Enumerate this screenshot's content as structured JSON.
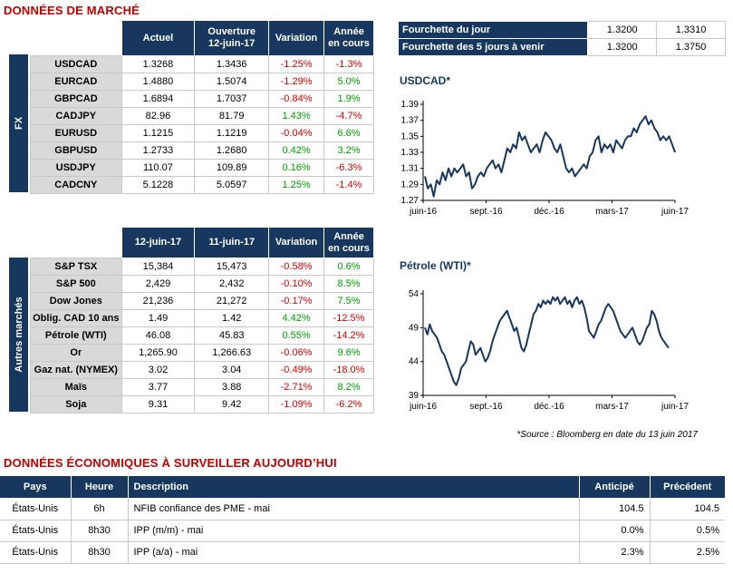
{
  "market": {
    "title": "DONNÉES DE MARCHÉ",
    "fx": {
      "side_label": "FX",
      "headers": [
        "Actuel",
        "Ouverture 12-juin-17",
        "Variation",
        "Année en cours"
      ],
      "rows": [
        {
          "name": "USDCAD",
          "cur": "1.3268",
          "open": "1.3436",
          "var": "-1.25%",
          "ytd": "-1.3%",
          "var_dir": "neg",
          "ytd_dir": "neg"
        },
        {
          "name": "EURCAD",
          "cur": "1.4880",
          "open": "1.5074",
          "var": "-1.29%",
          "ytd": "5.0%",
          "var_dir": "neg",
          "ytd_dir": "pos"
        },
        {
          "name": "GBPCAD",
          "cur": "1.6894",
          "open": "1.7037",
          "var": "-0.84%",
          "ytd": "1.9%",
          "var_dir": "neg",
          "ytd_dir": "pos"
        },
        {
          "name": "CADJPY",
          "cur": "82.96",
          "open": "81.79",
          "var": "1.43%",
          "ytd": "-4.7%",
          "var_dir": "pos",
          "ytd_dir": "neg"
        },
        {
          "name": "EURUSD",
          "cur": "1.1215",
          "open": "1.1219",
          "var": "-0.04%",
          "ytd": "6.6%",
          "var_dir": "neg",
          "ytd_dir": "pos"
        },
        {
          "name": "GBPUSD",
          "cur": "1.2733",
          "open": "1.2680",
          "var": "0.42%",
          "ytd": "3.2%",
          "var_dir": "pos",
          "ytd_dir": "pos"
        },
        {
          "name": "USDJPY",
          "cur": "110.07",
          "open": "109.89",
          "var": "0.16%",
          "ytd": "-6.3%",
          "var_dir": "pos",
          "ytd_dir": "neg"
        },
        {
          "name": "CADCNY",
          "cur": "5.1228",
          "open": "5.0597",
          "var": "1.25%",
          "ytd": "-1.4%",
          "var_dir": "pos",
          "ytd_dir": "neg"
        }
      ]
    },
    "range": {
      "rows": [
        {
          "label": "Fourchette du jour",
          "low": "1.3200",
          "high": "1.3310"
        },
        {
          "label": "Fourchette des 5 jours à venir",
          "low": "1.3200",
          "high": "1.3750"
        }
      ]
    },
    "other": {
      "side_label": "Autres marchés",
      "headers": [
        "12-juin-17",
        "11-juin-17",
        "Variation",
        "Année en cours"
      ],
      "rows": [
        {
          "name": "S&P TSX",
          "cur": "15,384",
          "prev": "15,473",
          "var": "-0.58%",
          "ytd": "0.6%",
          "var_dir": "neg",
          "ytd_dir": "pos"
        },
        {
          "name": "S&P 500",
          "cur": "2,429",
          "prev": "2,432",
          "var": "-0.10%",
          "ytd": "8.5%",
          "var_dir": "neg",
          "ytd_dir": "pos"
        },
        {
          "name": "Dow Jones",
          "cur": "21,236",
          "prev": "21,272",
          "var": "-0.17%",
          "ytd": "7.5%",
          "var_dir": "neg",
          "ytd_dir": "pos"
        },
        {
          "name": "Oblig. CAD 10 ans",
          "cur": "1.49",
          "prev": "1.42",
          "var": "4.42%",
          "ytd": "-12.5%",
          "var_dir": "pos",
          "ytd_dir": "neg"
        },
        {
          "name": "Pétrole (WTI)",
          "cur": "46.08",
          "prev": "45.83",
          "var": "0.55%",
          "ytd": "-14.2%",
          "var_dir": "pos",
          "ytd_dir": "neg"
        },
        {
          "name": "Or",
          "cur": "1,265.90",
          "prev": "1,266.63",
          "var": "-0.06%",
          "ytd": "9.6%",
          "var_dir": "neg",
          "ytd_dir": "pos"
        },
        {
          "name": "Gaz nat. (NYMEX)",
          "cur": "3.02",
          "prev": "3.04",
          "var": "-0.49%",
          "ytd": "-18.0%",
          "var_dir": "neg",
          "ytd_dir": "neg"
        },
        {
          "name": "Maïs",
          "cur": "3.77",
          "prev": "3.88",
          "var": "-2.71%",
          "ytd": "8.2%",
          "var_dir": "neg",
          "ytd_dir": "pos"
        },
        {
          "name": "Soja",
          "cur": "9.31",
          "prev": "9.42",
          "var": "-1.09%",
          "ytd": "-6.2%",
          "var_dir": "neg",
          "ytd_dir": "neg"
        }
      ]
    },
    "source": "*Source : Bloomberg en date du  13 juin 2017"
  },
  "chart_data": [
    {
      "type": "line",
      "title": "USDCAD*",
      "x_ticks": [
        "juin-16",
        "sept.-16",
        "déc.-16",
        "mars-17",
        "juin-17"
      ],
      "y_ticks": [
        "1.39",
        "1.37",
        "1.35",
        "1.33",
        "1.31",
        "1.29",
        "1.27"
      ],
      "ylim": [
        1.27,
        1.39
      ],
      "grid": false,
      "series": [
        {
          "color": "#17375e",
          "values": [
            1.3,
            1.285,
            1.29,
            1.275,
            1.295,
            1.29,
            1.305,
            1.295,
            1.31,
            1.3,
            1.31,
            1.305,
            1.31,
            1.315,
            1.3,
            1.305,
            1.285,
            1.29,
            1.3,
            1.305,
            1.3,
            1.31,
            1.315,
            1.32,
            1.31,
            1.315,
            1.305,
            1.32,
            1.335,
            1.33,
            1.34,
            1.335,
            1.355,
            1.345,
            1.35,
            1.34,
            1.33,
            1.335,
            1.34,
            1.33,
            1.345,
            1.355,
            1.35,
            1.345,
            1.335,
            1.33,
            1.34,
            1.325,
            1.31,
            1.305,
            1.31,
            1.3,
            1.305,
            1.31,
            1.315,
            1.31,
            1.325,
            1.33,
            1.345,
            1.35,
            1.33,
            1.34,
            1.335,
            1.34,
            1.33,
            1.345,
            1.34,
            1.335,
            1.345,
            1.35,
            1.35,
            1.36,
            1.355,
            1.365,
            1.37,
            1.375,
            1.365,
            1.37,
            1.36,
            1.355,
            1.345,
            1.35,
            1.345,
            1.35,
            1.34,
            1.33
          ]
        }
      ]
    },
    {
      "type": "line",
      "title": "Pétrole (WTI)*",
      "x_ticks": [
        "juin-16",
        "sept.-16",
        "déc.-16",
        "mars-17",
        "juin-17"
      ],
      "y_ticks": [
        "54",
        "49",
        "44",
        "39"
      ],
      "ylim": [
        39,
        54
      ],
      "grid": false,
      "series": [
        {
          "color": "#17375e",
          "values": [
            49,
            48,
            49.5,
            48.5,
            48,
            47.5,
            46.5,
            45.5,
            45,
            44,
            43,
            42,
            41,
            40.5,
            41.5,
            43,
            43.5,
            44,
            45.5,
            47,
            46.5,
            45,
            45.5,
            46,
            45,
            44,
            44.5,
            45.5,
            47,
            48,
            49,
            50,
            50.5,
            51,
            51.5,
            50.5,
            49.5,
            48.5,
            49,
            47.5,
            46,
            45.5,
            46.5,
            48,
            49.5,
            51,
            51.5,
            52.5,
            52,
            53,
            52.5,
            53,
            52.5,
            53.5,
            53,
            53.5,
            52.5,
            53,
            53.5,
            52.5,
            53,
            52,
            53,
            53.5,
            52.5,
            53,
            52,
            50.5,
            48.5,
            48,
            47.5,
            48.5,
            49.5,
            50,
            51,
            52,
            52.5,
            52,
            51.5,
            50.5,
            49.5,
            48.5,
            48,
            47.5,
            48,
            48.5,
            49,
            48,
            47,
            46.5,
            47,
            48,
            49,
            49.5,
            51.5,
            51,
            50,
            48.5,
            47.5,
            47,
            46.5,
            46
          ]
        }
      ]
    }
  ],
  "economic": {
    "title": "DONNÉES ÉCONOMIQUES À SURVEILLER AUJOURD’HUI",
    "headers": {
      "country": "Pays",
      "time": "Heure",
      "desc": "Description",
      "exp": "Anticipé",
      "prev": "Précédent"
    },
    "rows": [
      {
        "country": "États-Unis",
        "time": "6h",
        "desc": "NFIB confiance des PME - mai",
        "exp": "104.5",
        "prev": "104.5"
      },
      {
        "country": "États-Unis",
        "time": "8h30",
        "desc": "IPP (m/m) - mai",
        "exp": "0.0%",
        "prev": "0.5%"
      },
      {
        "country": "États-Unis",
        "time": "8h30",
        "desc": "IPP (a/a) - mai",
        "exp": "2.3%",
        "prev": "2.5%"
      }
    ]
  }
}
